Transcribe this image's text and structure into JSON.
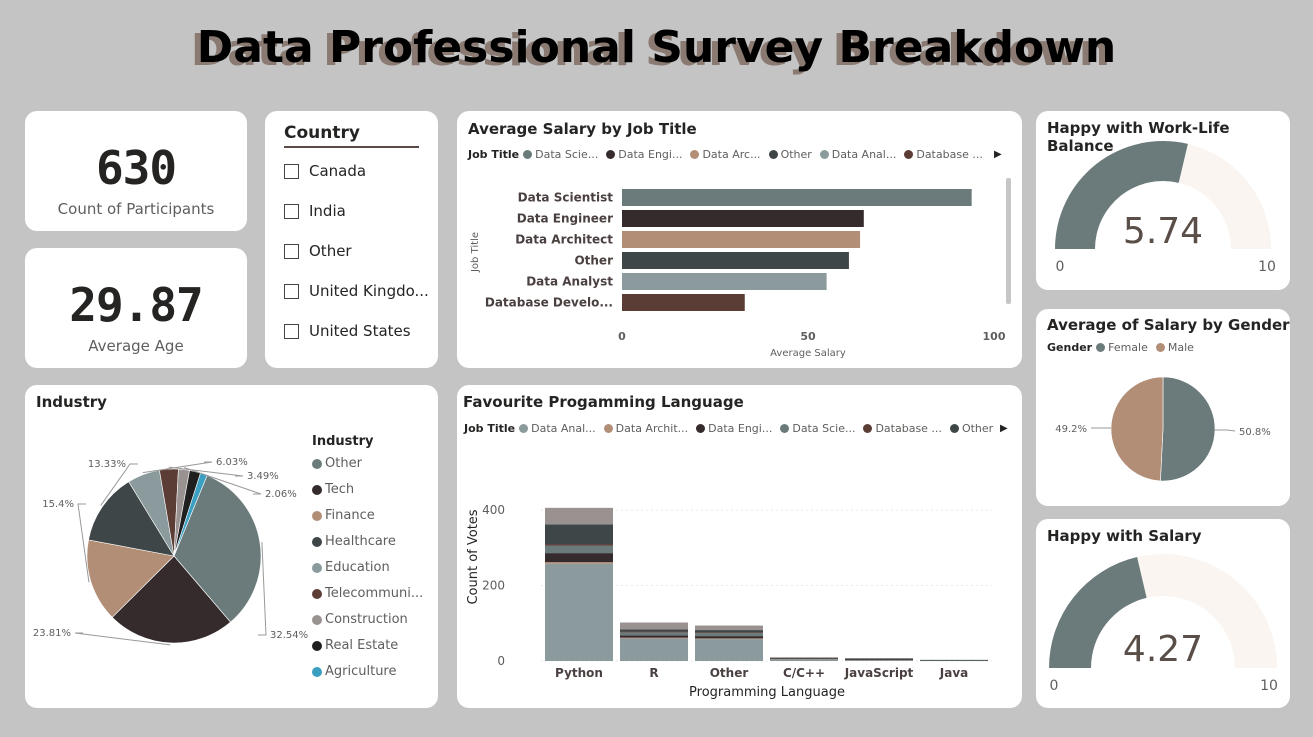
{
  "header": {
    "title": "Data Professional Survey Breakdown"
  },
  "kpis": {
    "participants": {
      "value": "630",
      "label": "Count of Participants"
    },
    "age": {
      "value": "29.87",
      "label": "Average Age"
    }
  },
  "country_slicer": {
    "title": "Country",
    "options": [
      "Canada",
      "India",
      "Other",
      "United Kingdo...",
      "United States"
    ]
  },
  "salary_by_job": {
    "title": "Average Salary by Job Title",
    "legend_title": "Job Title",
    "legend": [
      "Data Scie...",
      "Data Engi...",
      "Data Arc...",
      "Other",
      "Data Anal...",
      "Database ..."
    ],
    "legend_arrow": "▶"
  },
  "worklife": {
    "title": "Happy with Work-Life Balance",
    "value": "5.74",
    "min": "0",
    "max": "10"
  },
  "salary_gender": {
    "title": "Average of Salary by Gender",
    "legend_title": "Gender",
    "legend": [
      "Female",
      "Male"
    ]
  },
  "industry": {
    "title": "Industry",
    "legend_title": "Industry",
    "legend": [
      "Other",
      "Tech",
      "Finance",
      "Healthcare",
      "Education",
      "Telecommuni...",
      "Construction",
      "Real Estate",
      "Agriculture"
    ]
  },
  "fav_lang": {
    "title": "Favourite Progamming Language",
    "legend_title": "Job Title",
    "legend": [
      "Data Anal...",
      "Data Archit...",
      "Data Engi...",
      "Data Scie...",
      "Database ...",
      "Other"
    ],
    "legend_arrow": "▶"
  },
  "happy_salary": {
    "title": "Happy with Salary",
    "value": "4.27",
    "min": "0",
    "max": "10"
  },
  "colors": {
    "data_scientist": "#6b7b7c",
    "data_engineer": "#352b2c",
    "data_architect": "#b38e77",
    "other": "#3f4648",
    "data_analyst": "#8a9a9d",
    "database_dev": "#5c3d36",
    "gauge_fill": "#6b7b7c",
    "gauge_bg": "#faf5f0",
    "agriculture": "#3a9fc0",
    "construction": "#9a9290"
  },
  "chart_data": [
    {
      "type": "bar",
      "orientation": "horizontal",
      "title": "Average Salary by Job Title",
      "categories": [
        "Data Scientist",
        "Data Engineer",
        "Data Architect",
        "Other",
        "Data Analyst",
        "Database Develo..."
      ],
      "values": [
        94,
        65,
        64,
        61,
        55,
        33
      ],
      "xlabel": "Average Salary",
      "ylabel": "Job Title",
      "xlim": [
        0,
        100
      ],
      "xticks": [
        "0",
        "50",
        "100"
      ]
    },
    {
      "type": "pie",
      "title": "Average of Salary by Gender",
      "labels": [
        "Female",
        "Male"
      ],
      "values": [
        50.8,
        49.2
      ],
      "data_labels": [
        "50.8%",
        "49.2%"
      ]
    },
    {
      "type": "pie",
      "title": "Industry",
      "labels": [
        "Other",
        "Tech",
        "Finance",
        "Healthcare",
        "Education",
        "Telecommuni...",
        "Construction",
        "Real Estate",
        "Agriculture"
      ],
      "values": [
        32.54,
        23.81,
        15.4,
        13.33,
        6.03,
        3.49,
        2.06,
        2.06,
        1.28
      ],
      "data_labels": [
        "32.54%",
        "23.81%",
        "15.4%",
        "13.33%",
        "6.03%",
        "3.49%",
        "2.06%",
        "",
        ""
      ]
    },
    {
      "type": "bar",
      "stacked": true,
      "title": "Favourite Progamming Language",
      "categories": [
        "Python",
        "R",
        "Other",
        "C/C++",
        "JavaScript",
        "Java"
      ],
      "series": [
        {
          "name": "Data Anal...",
          "values": [
            258,
            60,
            58,
            6,
            4,
            2
          ]
        },
        {
          "name": "Data Archit...",
          "values": [
            4,
            2,
            2,
            1,
            0,
            0
          ]
        },
        {
          "name": "Data Engi...",
          "values": [
            24,
            6,
            6,
            1,
            1,
            0
          ]
        },
        {
          "name": "Data Scie...",
          "values": [
            20,
            8,
            8,
            0,
            0,
            0
          ]
        },
        {
          "name": "Database ...",
          "values": [
            4,
            2,
            2,
            0,
            1,
            0
          ]
        },
        {
          "name": "Other",
          "values": [
            52,
            6,
            6,
            1,
            1,
            1
          ]
        },
        {
          "name": "",
          "values": [
            44,
            18,
            12,
            1,
            0,
            0
          ]
        }
      ],
      "xlabel": "Programming Language",
      "ylabel": "Count of Votes",
      "ylim": [
        0,
        440
      ],
      "yticks": [
        "0",
        "200",
        "400"
      ]
    },
    {
      "type": "gauge",
      "title": "Happy with Work-Life Balance",
      "value": 5.74,
      "min": 0,
      "max": 10
    },
    {
      "type": "gauge",
      "title": "Happy with Salary",
      "value": 4.27,
      "min": 0,
      "max": 10
    }
  ]
}
